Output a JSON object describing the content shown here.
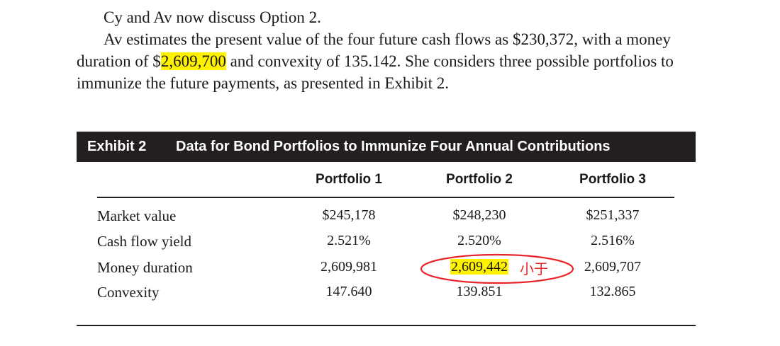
{
  "intro": {
    "line1": "Cy and Av now discuss Option 2.",
    "para2_before": "Av estimates the present value of the four future cash flows as $230,372, with a money duration of $",
    "para2_highlight": "2,609,700",
    "para2_after": " and convexity of 135.142. She considers three possible portfolios to immunize the future payments, as presented in Exhibit 2."
  },
  "exhibit": {
    "number": "Exhibit 2",
    "title": "Data for Bond Portfolios to Immunize Four Annual Contributions",
    "columns": [
      "Portfolio 1",
      "Portfolio 2",
      "Portfolio 3"
    ],
    "rows": [
      {
        "label": "Market value",
        "values": [
          "$245,178",
          "$248,230",
          "$251,337"
        ]
      },
      {
        "label": "Cash flow yield",
        "values": [
          "2.521%",
          "2.520%",
          "2.516%"
        ]
      },
      {
        "label": "Money duration",
        "values": [
          "2,609,981",
          "2,609,442",
          "2,609,707"
        ]
      },
      {
        "label": "Convexity",
        "values": [
          "147.640",
          "139.851",
          "132.865"
        ]
      }
    ]
  },
  "annotation": {
    "note": "小于",
    "color": "#e8262a",
    "highlight_color": "#fff200"
  }
}
